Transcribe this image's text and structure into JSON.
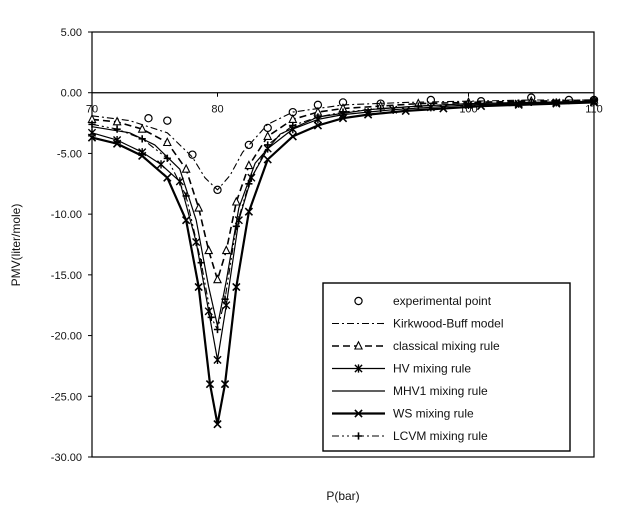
{
  "chart_data": {
    "type": "line",
    "xlabel": "P(bar)",
    "ylabel": "PMV(liter/mole)",
    "xlim": [
      70,
      110
    ],
    "ylim": [
      -30,
      5
    ],
    "x_ticks": [
      "70",
      "80",
      "100",
      "110"
    ],
    "x_tick_values": [
      70,
      80,
      100,
      110
    ],
    "y_ticks": [
      "5.00",
      "0.00",
      "-5.00",
      "-10.00",
      "-15.00",
      "-20.00",
      "-25.00",
      "-30.00"
    ],
    "y_tick_values": [
      5,
      0,
      -5,
      -10,
      -15,
      -20,
      -25,
      -30
    ],
    "grid": false,
    "legend_position": "bottom-right",
    "series": [
      {
        "name": "experimental point",
        "style": "markers-only",
        "marker": "circle",
        "points": [
          [
            74.5,
            -2.1
          ],
          [
            76,
            -2.3
          ],
          [
            78,
            -5.1
          ],
          [
            80,
            -8.0
          ],
          [
            82.5,
            -4.3
          ],
          [
            84,
            -2.9
          ],
          [
            86,
            -1.6
          ],
          [
            88,
            -1.0
          ],
          [
            90,
            -0.8
          ],
          [
            93,
            -0.9
          ],
          [
            97,
            -0.6
          ],
          [
            101,
            -0.7
          ],
          [
            105,
            -0.4
          ],
          [
            108,
            -0.6
          ],
          [
            110,
            -0.6
          ]
        ]
      },
      {
        "name": "Kirkwood-Buff model",
        "style": "dash-dot",
        "marker": "none",
        "points": [
          [
            70,
            -1.9
          ],
          [
            73,
            -2.3
          ],
          [
            76,
            -3.3
          ],
          [
            78,
            -5.3
          ],
          [
            79,
            -7.0
          ],
          [
            80,
            -8.0
          ],
          [
            81,
            -6.8
          ],
          [
            82,
            -4.9
          ],
          [
            84,
            -2.6
          ],
          [
            86,
            -1.6
          ],
          [
            90,
            -1.0
          ],
          [
            95,
            -0.8
          ],
          [
            100,
            -0.7
          ],
          [
            105,
            -0.6
          ],
          [
            110,
            -0.6
          ]
        ]
      },
      {
        "name": "classical mixing rule",
        "style": "dashed",
        "marker": "triangle",
        "points": [
          [
            70,
            -2.2
          ],
          [
            72,
            -2.4
          ],
          [
            74,
            -3.0
          ],
          [
            76,
            -4.1
          ],
          [
            77.5,
            -6.3
          ],
          [
            78.5,
            -9.5
          ],
          [
            79.3,
            -13.0
          ],
          [
            80,
            -15.4
          ],
          [
            80.7,
            -13.0
          ],
          [
            81.5,
            -9.0
          ],
          [
            82.5,
            -6.0
          ],
          [
            84,
            -3.6
          ],
          [
            86,
            -2.2
          ],
          [
            88,
            -1.6
          ],
          [
            90,
            -1.3
          ],
          [
            93,
            -1.1
          ],
          [
            96,
            -0.9
          ],
          [
            100,
            -0.8
          ],
          [
            105,
            -0.7
          ],
          [
            110,
            -0.6
          ]
        ]
      },
      {
        "name": "HV mixing rule",
        "style": "solid",
        "marker": "asterisk",
        "points": [
          [
            70,
            -3.3
          ],
          [
            72,
            -3.9
          ],
          [
            74,
            -4.9
          ],
          [
            75.5,
            -5.9
          ],
          [
            77,
            -7.3
          ],
          [
            78.3,
            -12.3
          ],
          [
            79.3,
            -18.0
          ],
          [
            80,
            -22.0
          ],
          [
            80.7,
            -17.5
          ],
          [
            81.7,
            -10.5
          ],
          [
            82.7,
            -7.0
          ],
          [
            84,
            -4.6
          ],
          [
            86,
            -3.0
          ],
          [
            88,
            -2.2
          ],
          [
            90,
            -1.8
          ],
          [
            92,
            -1.6
          ],
          [
            94,
            -1.4
          ],
          [
            97,
            -1.2
          ],
          [
            100,
            -1.0
          ],
          [
            104,
            -0.9
          ],
          [
            107,
            -0.8
          ],
          [
            110,
            -0.7
          ]
        ]
      },
      {
        "name": "MHV1 mixing rule",
        "style": "solid",
        "marker": "none",
        "points": [
          [
            70,
            -2.8
          ],
          [
            73,
            -3.3
          ],
          [
            75,
            -4.3
          ],
          [
            77,
            -6.3
          ],
          [
            78.3,
            -10.5
          ],
          [
            79.3,
            -16.0
          ],
          [
            80,
            -19.2
          ],
          [
            80.7,
            -15.5
          ],
          [
            81.7,
            -9.5
          ],
          [
            83,
            -5.8
          ],
          [
            85,
            -3.4
          ],
          [
            88,
            -2.0
          ],
          [
            92,
            -1.4
          ],
          [
            96,
            -1.1
          ],
          [
            100,
            -0.9
          ],
          [
            105,
            -0.8
          ],
          [
            110,
            -0.7
          ]
        ]
      },
      {
        "name": "WS mixing rule",
        "style": "solid-bold",
        "marker": "x",
        "points": [
          [
            70,
            -3.7
          ],
          [
            72,
            -4.2
          ],
          [
            74,
            -5.2
          ],
          [
            76,
            -7.0
          ],
          [
            77.5,
            -10.5
          ],
          [
            78.5,
            -16.0
          ],
          [
            79.4,
            -24.0
          ],
          [
            80,
            -27.3
          ],
          [
            80.6,
            -24.0
          ],
          [
            81.5,
            -16.0
          ],
          [
            82.5,
            -9.8
          ],
          [
            84,
            -5.5
          ],
          [
            86,
            -3.6
          ],
          [
            88,
            -2.7
          ],
          [
            90,
            -2.1
          ],
          [
            92,
            -1.8
          ],
          [
            95,
            -1.5
          ],
          [
            98,
            -1.3
          ],
          [
            101,
            -1.1
          ],
          [
            104,
            -1.0
          ],
          [
            107,
            -0.9
          ],
          [
            110,
            -0.8
          ]
        ]
      },
      {
        "name": "LCVM mixing rule",
        "style": "dash-dot-dot",
        "marker": "plus",
        "points": [
          [
            70,
            -2.6
          ],
          [
            72,
            -3.0
          ],
          [
            74,
            -3.8
          ],
          [
            76,
            -5.4
          ],
          [
            77.5,
            -8.5
          ],
          [
            78.7,
            -14.0
          ],
          [
            79.5,
            -18.5
          ],
          [
            80,
            -19.5
          ],
          [
            80.6,
            -17.0
          ],
          [
            81.5,
            -11.0
          ],
          [
            82.5,
            -7.5
          ],
          [
            84,
            -4.3
          ],
          [
            86,
            -2.7
          ],
          [
            88,
            -2.0
          ],
          [
            90,
            -1.6
          ],
          [
            93,
            -1.3
          ],
          [
            96,
            -1.1
          ],
          [
            100,
            -0.9
          ],
          [
            105,
            -0.8
          ],
          [
            110,
            -0.7
          ]
        ]
      }
    ]
  }
}
